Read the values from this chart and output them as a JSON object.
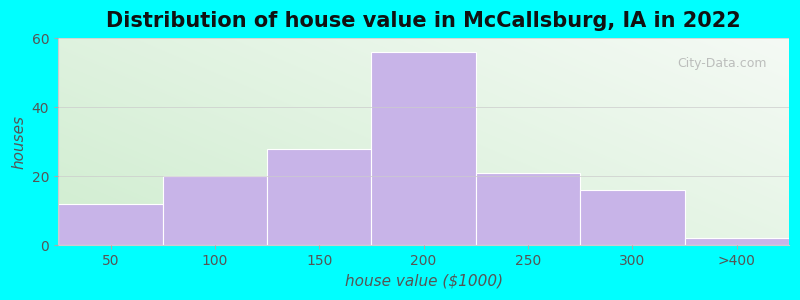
{
  "title": "Distribution of house value in McCallsburg, IA in 2022",
  "xlabel": "house value ($1000)",
  "ylabel": "houses",
  "bar_labels": [
    "50",
    "100",
    "150",
    "200",
    "250",
    "300",
    ">400"
  ],
  "bar_heights": [
    12,
    20,
    28,
    56,
    21,
    16,
    2
  ],
  "bar_color": "#c8b4e8",
  "ylim": [
    0,
    60
  ],
  "yticks": [
    0,
    20,
    40,
    60
  ],
  "background_color": "#00FFFF",
  "plot_bg_color_tl": "#e8f5e0",
  "plot_bg_color_tr": "#f0f8ee",
  "plot_bg_color_bl": "#d0edd0",
  "plot_bg_color_br": "#f5faf5",
  "title_fontsize": 15,
  "axis_label_fontsize": 11,
  "tick_fontsize": 10,
  "watermark_text": "City-Data.com",
  "tick_color": "#555555",
  "label_color": "#555555",
  "title_color": "#111111"
}
